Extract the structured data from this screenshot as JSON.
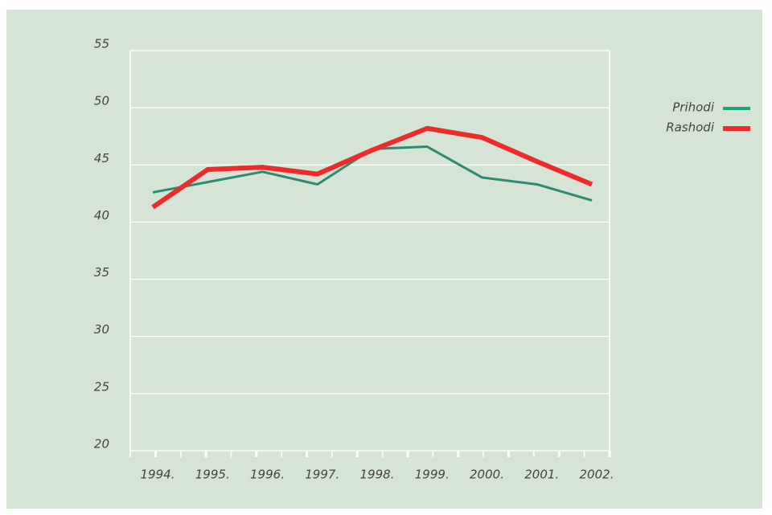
{
  "chart_data": {
    "type": "line",
    "categories": [
      "1994.",
      "1995.",
      "1996.",
      "1997.",
      "1998.",
      "1999.",
      "2000.",
      "2001.",
      "2002."
    ],
    "series": [
      {
        "name": "Prihodi",
        "color": "#2e8b70",
        "legend_color": "#12a97a",
        "values": [
          42.6,
          43.5,
          44.4,
          43.3,
          46.4,
          46.6,
          43.9,
          43.3,
          41.9
        ]
      },
      {
        "name": "Rashodi",
        "color": "#ee2b2b",
        "legend_color": "#ee2b2b",
        "values": [
          41.3,
          44.6,
          44.8,
          44.2,
          46.3,
          48.2,
          47.4,
          45.3,
          43.3
        ]
      }
    ],
    "ylim": [
      20,
      55
    ],
    "yticks": [
      20,
      25,
      30,
      35,
      40,
      45,
      50,
      55
    ],
    "grid": true,
    "legend": "right"
  }
}
